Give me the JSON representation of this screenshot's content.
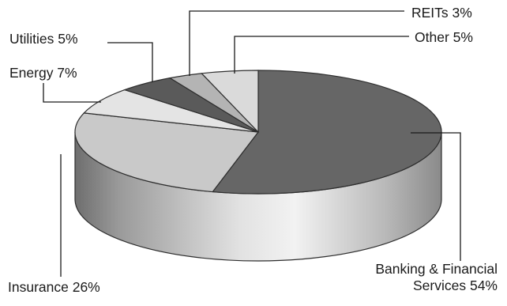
{
  "chart_data": {
    "type": "pie",
    "style": "3d",
    "title": "",
    "slices": [
      {
        "label": "Banking & Financial Services 54%",
        "value": 54,
        "color": "#666666"
      },
      {
        "label": "Insurance 26%",
        "value": 26,
        "color": "#c9c9c9"
      },
      {
        "label": "Energy 7%",
        "value": 7,
        "color": "#e4e4e4"
      },
      {
        "label": "Utilities 5%",
        "value": 5,
        "color": "#5a5a5a"
      },
      {
        "label": "REITs 3%",
        "value": 3,
        "color": "#b4b4b4"
      },
      {
        "label": "Other 5%",
        "value": 5,
        "color": "#dadada"
      }
    ]
  },
  "labels": {
    "banking_line1": "Banking & Financial",
    "banking_line2": "Services 54%",
    "insurance": "Insurance 26%",
    "energy": "Energy 7%",
    "utilities": "Utilities 5%",
    "reits": "REITs 3%",
    "other": "Other 5%"
  }
}
